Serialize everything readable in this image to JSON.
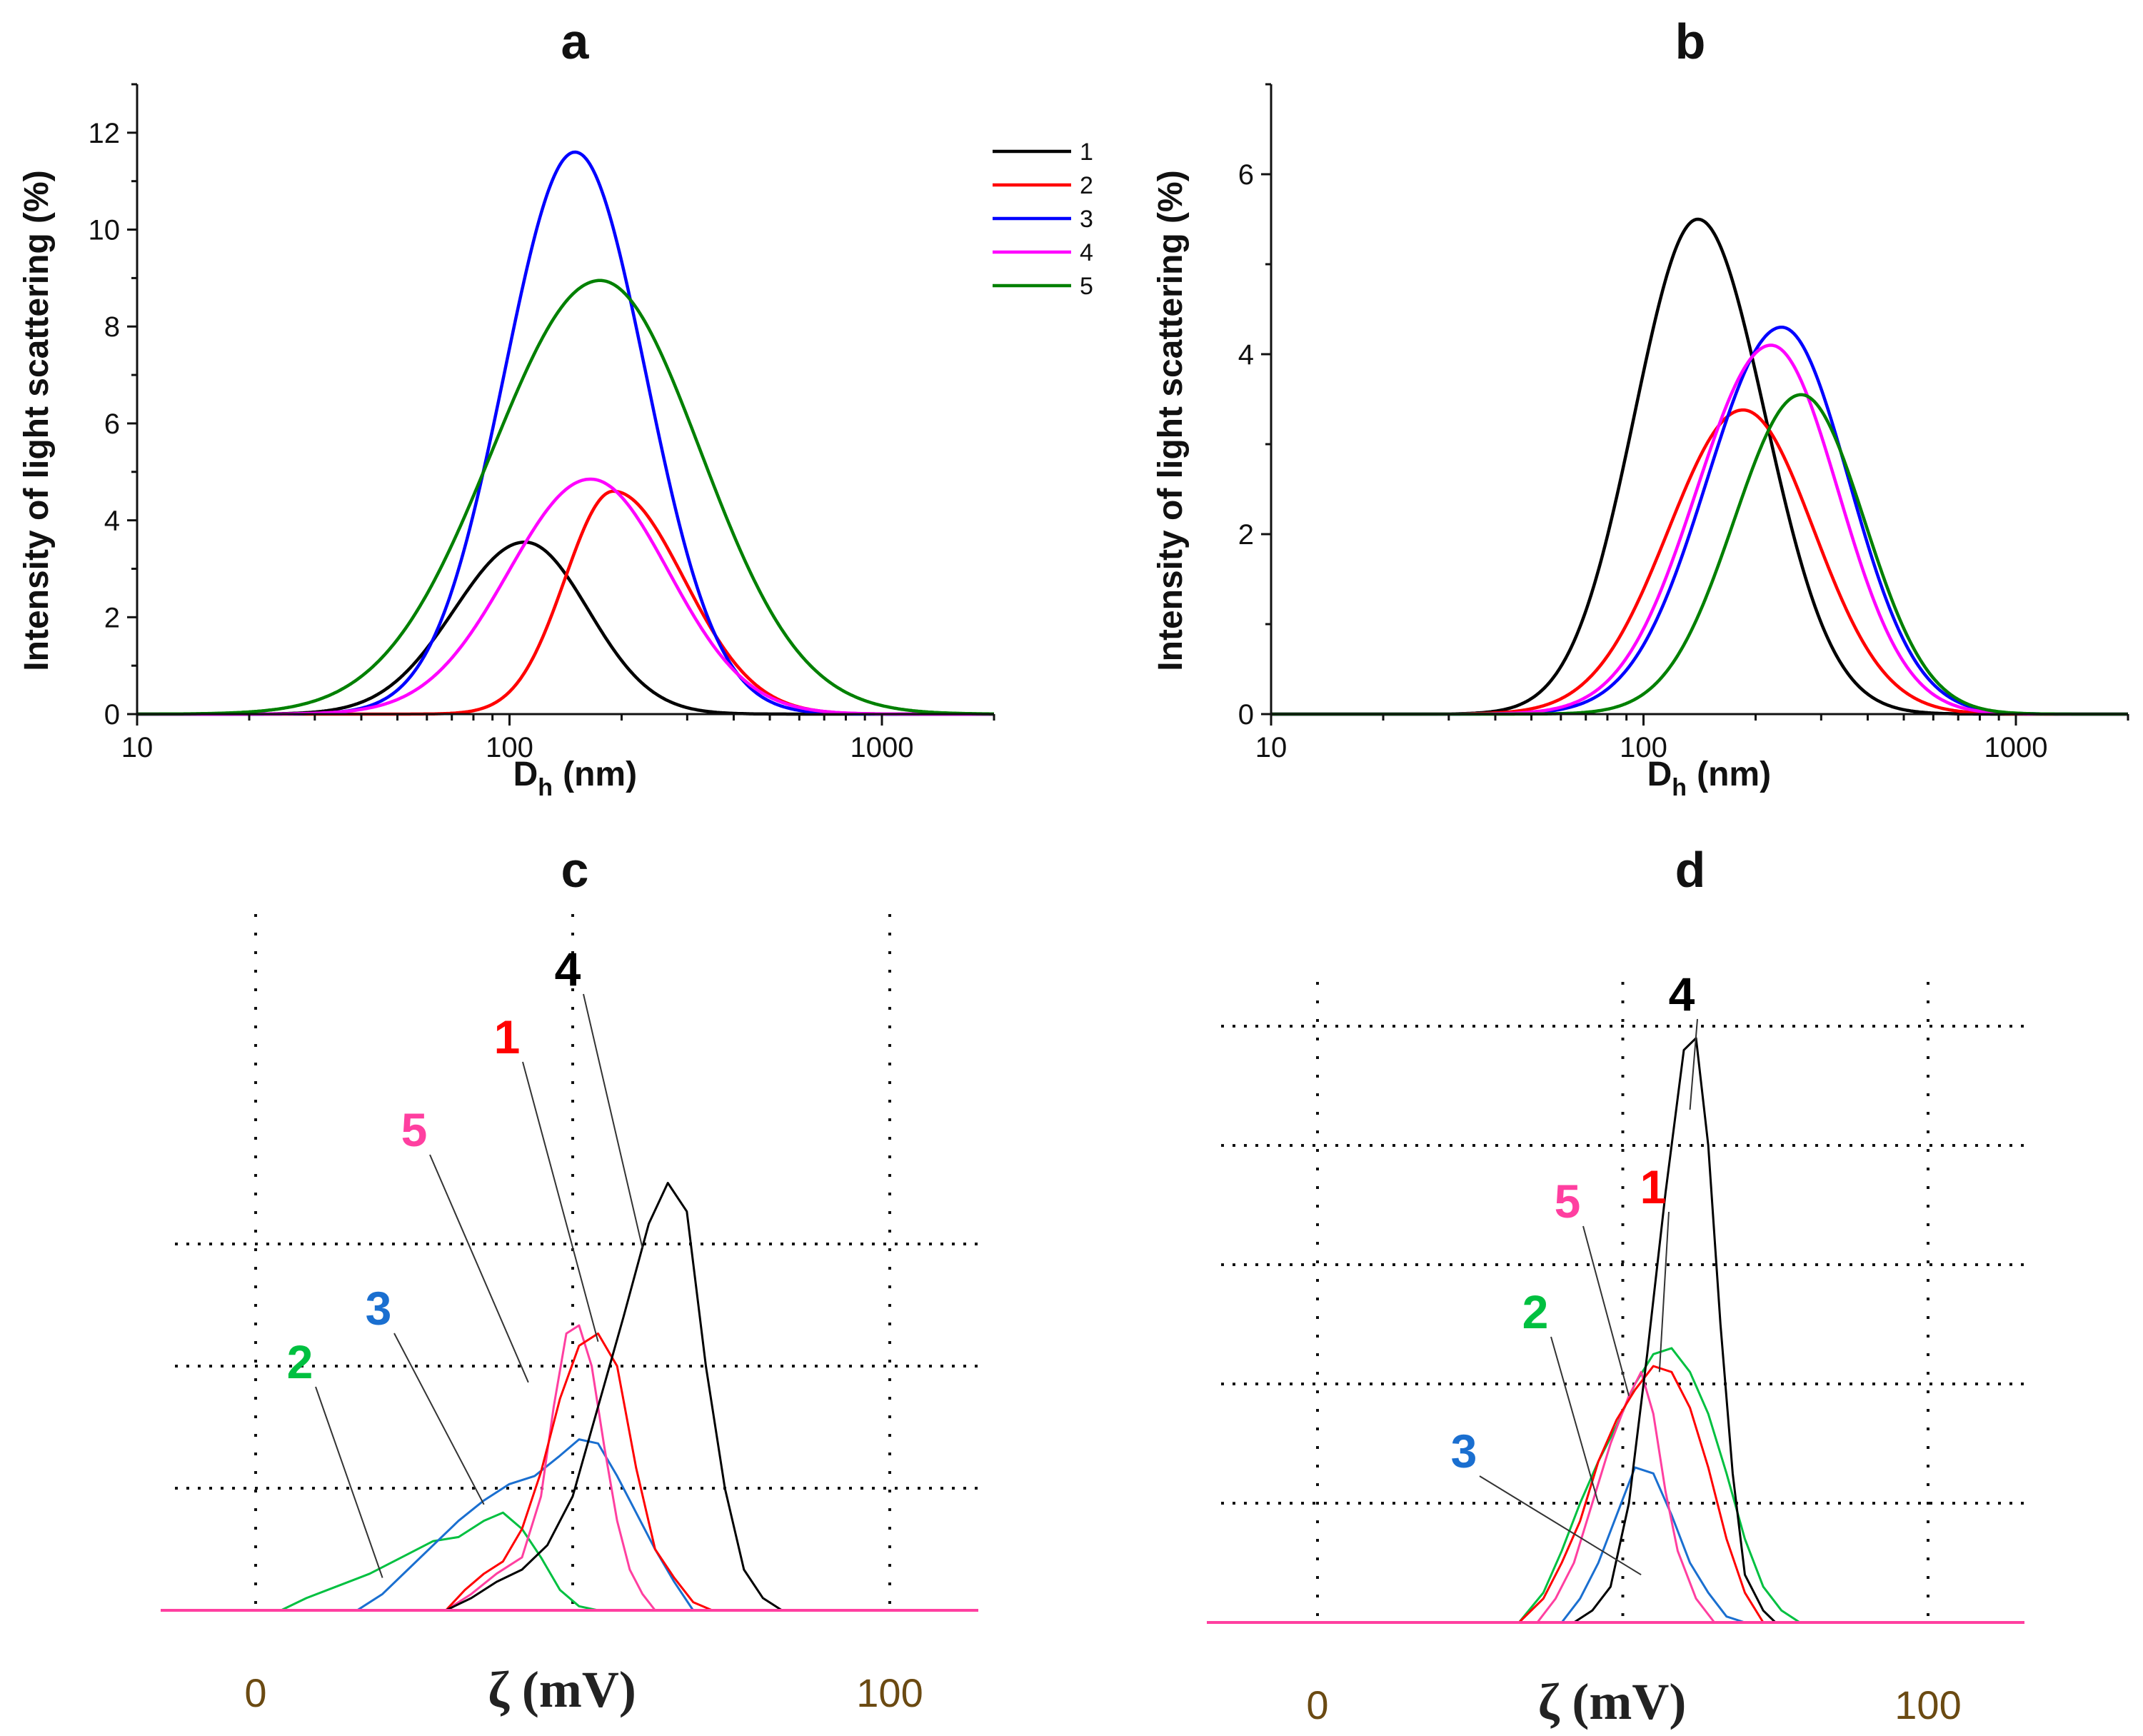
{
  "figure": {
    "palette": {
      "1": "#000000",
      "2": "#ff0000",
      "3": "#0000ff",
      "4": "#ff00ff",
      "5": "#008000"
    },
    "zeta_palette": {
      "1": "#ff0000",
      "2": "#00c040",
      "3": "#1a6fd0",
      "4": "#000000",
      "5": "#ff3fa0"
    }
  },
  "chart_data": [
    {
      "id": "a",
      "type": "line",
      "title": "a",
      "xlabel_main": "D",
      "xlabel_sub": "h",
      "xlabel_unit": "(nm)",
      "ylabel": "Intensity of light scattering (%)",
      "xscale": "log",
      "xlim": [
        10,
        2000
      ],
      "ylim": [
        0,
        13
      ],
      "xticks": [
        10,
        100,
        1000
      ],
      "yticks": [
        0,
        2,
        4,
        6,
        8,
        10,
        12
      ],
      "legend": {
        "position": "top-right",
        "entries": [
          "1",
          "2",
          "3",
          "4",
          "5"
        ]
      },
      "series": [
        {
          "name": "1",
          "peak_x": 110,
          "peak_y": 3.55,
          "sigma_left": 0.19,
          "sigma_right": 0.17
        },
        {
          "name": "2",
          "peak_x": 190,
          "peak_y": 4.6,
          "sigma_left": 0.13,
          "sigma_right": 0.19
        },
        {
          "name": "3",
          "peak_x": 150,
          "peak_y": 11.6,
          "sigma_left": 0.19,
          "sigma_right": 0.19
        },
        {
          "name": "4",
          "peak_x": 165,
          "peak_y": 4.85,
          "sigma_left": 0.22,
          "sigma_right": 0.21
        },
        {
          "name": "5",
          "peak_x": 175,
          "peak_y": 8.95,
          "sigma_left": 0.29,
          "sigma_right": 0.27
        }
      ]
    },
    {
      "id": "b",
      "type": "line",
      "title": "b",
      "xlabel_main": "D",
      "xlabel_sub": "h",
      "xlabel_unit": "(nm)",
      "ylabel": "Intensity of light scattering (%)",
      "xscale": "log",
      "xlim": [
        10,
        2000
      ],
      "ylim": [
        0,
        7
      ],
      "xticks": [
        10,
        100,
        1000
      ],
      "yticks": [
        0,
        2,
        4,
        6
      ],
      "series": [
        {
          "name": "1",
          "peak_x": 140,
          "peak_y": 5.5,
          "sigma_left": 0.17,
          "sigma_right": 0.18
        },
        {
          "name": "2",
          "peak_x": 185,
          "peak_y": 3.38,
          "sigma_left": 0.2,
          "sigma_right": 0.19
        },
        {
          "name": "3",
          "peak_x": 235,
          "peak_y": 4.3,
          "sigma_left": 0.2,
          "sigma_right": 0.18
        },
        {
          "name": "4",
          "peak_x": 220,
          "peak_y": 4.1,
          "sigma_left": 0.2,
          "sigma_right": 0.18
        },
        {
          "name": "5",
          "peak_x": 265,
          "peak_y": 3.55,
          "sigma_left": 0.18,
          "sigma_right": 0.17
        }
      ]
    },
    {
      "id": "c",
      "type": "line",
      "title": "c",
      "xlabel": "ζ (mV)",
      "xlim": [
        -15,
        115
      ],
      "xticks": [
        0,
        100
      ],
      "grid_x": [
        0,
        50,
        100
      ],
      "grid_y": [
        0.3,
        0.6,
        0.9
      ],
      "ylim": [
        0,
        1.1
      ],
      "series": [
        {
          "name": "1",
          "points": [
            [
              30,
              0
            ],
            [
              33,
              0.05
            ],
            [
              36,
              0.09
            ],
            [
              39,
              0.12
            ],
            [
              42,
              0.2
            ],
            [
              45,
              0.34
            ],
            [
              48,
              0.52
            ],
            [
              51,
              0.65
            ],
            [
              54,
              0.68
            ],
            [
              57,
              0.6
            ],
            [
              60,
              0.35
            ],
            [
              63,
              0.15
            ],
            [
              66,
              0.08
            ],
            [
              69,
              0.02
            ],
            [
              72,
              0
            ]
          ]
        },
        {
          "name": "2",
          "points": [
            [
              4,
              0
            ],
            [
              8,
              0.03
            ],
            [
              13,
              0.06
            ],
            [
              18,
              0.09
            ],
            [
              23,
              0.13
            ],
            [
              28,
              0.17
            ],
            [
              32,
              0.18
            ],
            [
              36,
              0.22
            ],
            [
              39,
              0.24
            ],
            [
              42,
              0.2
            ],
            [
              45,
              0.13
            ],
            [
              48,
              0.05
            ],
            [
              51,
              0.01
            ],
            [
              54,
              0
            ]
          ]
        },
        {
          "name": "3",
          "points": [
            [
              16,
              0
            ],
            [
              20,
              0.04
            ],
            [
              24,
              0.1
            ],
            [
              28,
              0.16
            ],
            [
              32,
              0.22
            ],
            [
              36,
              0.27
            ],
            [
              40,
              0.31
            ],
            [
              44,
              0.33
            ],
            [
              48,
              0.38
            ],
            [
              51,
              0.42
            ],
            [
              54,
              0.41
            ],
            [
              57,
              0.33
            ],
            [
              60,
              0.24
            ],
            [
              63,
              0.15
            ],
            [
              66,
              0.07
            ],
            [
              69,
              0
            ]
          ]
        },
        {
          "name": "4",
          "points": [
            [
              30,
              0
            ],
            [
              34,
              0.03
            ],
            [
              38,
              0.07
            ],
            [
              42,
              0.1
            ],
            [
              46,
              0.16
            ],
            [
              50,
              0.28
            ],
            [
              54,
              0.5
            ],
            [
              58,
              0.72
            ],
            [
              62,
              0.95
            ],
            [
              65,
              1.05
            ],
            [
              68,
              0.98
            ],
            [
              71,
              0.6
            ],
            [
              74,
              0.3
            ],
            [
              77,
              0.1
            ],
            [
              80,
              0.03
            ],
            [
              83,
              0
            ]
          ]
        },
        {
          "name": "5",
          "points": [
            [
              30,
              0
            ],
            [
              34,
              0.04
            ],
            [
              38,
              0.09
            ],
            [
              42,
              0.13
            ],
            [
              45,
              0.28
            ],
            [
              47,
              0.5
            ],
            [
              49,
              0.68
            ],
            [
              51,
              0.7
            ],
            [
              53,
              0.6
            ],
            [
              55,
              0.4
            ],
            [
              57,
              0.22
            ],
            [
              59,
              0.1
            ],
            [
              61,
              0.04
            ],
            [
              63,
              0
            ]
          ]
        }
      ],
      "annotations": [
        {
          "text": "1",
          "series": "1",
          "tip": [
            54,
            0.66
          ]
        },
        {
          "text": "2",
          "series": "2",
          "tip": [
            20,
            0.08
          ]
        },
        {
          "text": "3",
          "series": "3",
          "tip": [
            36,
            0.26
          ]
        },
        {
          "text": "4",
          "series": "4",
          "tip": [
            61,
            0.89
          ]
        },
        {
          "text": "5",
          "series": "5",
          "tip": [
            43,
            0.56
          ]
        }
      ]
    },
    {
      "id": "d",
      "type": "line",
      "title": "d",
      "xlabel": "ζ (mV)",
      "xlim": [
        -35,
        115
      ],
      "xticks": [
        0,
        100
      ],
      "grid_x": [
        0,
        50,
        100
      ],
      "grid_y": [
        0.2,
        0.4,
        0.6,
        0.8,
        1.0
      ],
      "ylim": [
        0,
        1.1
      ],
      "series": [
        {
          "name": "1",
          "points": [
            [
              33,
              0
            ],
            [
              37,
              0.04
            ],
            [
              40,
              0.1
            ],
            [
              43,
              0.17
            ],
            [
              46,
              0.27
            ],
            [
              49,
              0.34
            ],
            [
              52,
              0.39
            ],
            [
              55,
              0.43
            ],
            [
              58,
              0.42
            ],
            [
              61,
              0.36
            ],
            [
              64,
              0.26
            ],
            [
              67,
              0.14
            ],
            [
              70,
              0.05
            ],
            [
              73,
              0
            ]
          ]
        },
        {
          "name": "2",
          "points": [
            [
              33,
              0
            ],
            [
              37,
              0.05
            ],
            [
              40,
              0.12
            ],
            [
              43,
              0.2
            ],
            [
              46,
              0.27
            ],
            [
              49,
              0.33
            ],
            [
              52,
              0.4
            ],
            [
              55,
              0.45
            ],
            [
              58,
              0.46
            ],
            [
              61,
              0.42
            ],
            [
              64,
              0.35
            ],
            [
              67,
              0.25
            ],
            [
              70,
              0.14
            ],
            [
              73,
              0.06
            ],
            [
              76,
              0.02
            ],
            [
              79,
              0
            ]
          ]
        },
        {
          "name": "3",
          "points": [
            [
              40,
              0
            ],
            [
              43,
              0.04
            ],
            [
              46,
              0.1
            ],
            [
              49,
              0.18
            ],
            [
              52,
              0.26
            ],
            [
              55,
              0.25
            ],
            [
              58,
              0.18
            ],
            [
              61,
              0.1
            ],
            [
              64,
              0.05
            ],
            [
              67,
              0.01
            ],
            [
              70,
              0
            ]
          ]
        },
        {
          "name": "4",
          "points": [
            [
              42,
              0
            ],
            [
              45,
              0.02
            ],
            [
              48,
              0.06
            ],
            [
              51,
              0.2
            ],
            [
              54,
              0.45
            ],
            [
              57,
              0.72
            ],
            [
              60,
              0.96
            ],
            [
              62,
              0.98
            ],
            [
              64,
              0.8
            ],
            [
              66,
              0.5
            ],
            [
              68,
              0.25
            ],
            [
              70,
              0.08
            ],
            [
              73,
              0.02
            ],
            [
              75,
              0
            ]
          ]
        },
        {
          "name": "5",
          "points": [
            [
              36,
              0
            ],
            [
              39,
              0.04
            ],
            [
              42,
              0.1
            ],
            [
              45,
              0.2
            ],
            [
              48,
              0.3
            ],
            [
              51,
              0.38
            ],
            [
              53,
              0.42
            ],
            [
              55,
              0.35
            ],
            [
              57,
              0.22
            ],
            [
              59,
              0.12
            ],
            [
              62,
              0.04
            ],
            [
              65,
              0
            ]
          ]
        }
      ],
      "annotations": [
        {
          "text": "1",
          "series": "1",
          "tip": [
            56,
            0.42
          ]
        },
        {
          "text": "2",
          "series": "2",
          "tip": [
            46,
            0.2
          ]
        },
        {
          "text": "3",
          "series": "3",
          "tip": [
            53,
            0.08
          ]
        },
        {
          "text": "4",
          "series": "4",
          "tip": [
            61,
            0.86
          ]
        },
        {
          "text": "5",
          "series": "5",
          "tip": [
            51,
            0.38
          ]
        }
      ]
    }
  ]
}
